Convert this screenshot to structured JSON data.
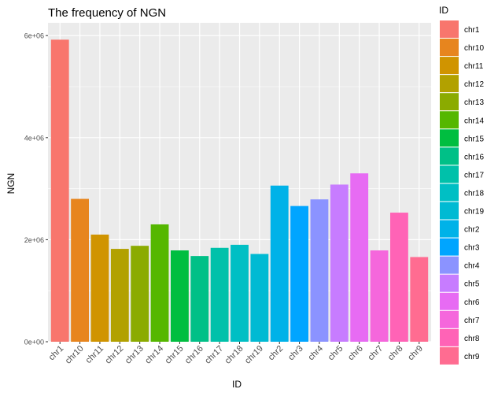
{
  "chart_data": {
    "type": "bar",
    "title": "The frequency of NGN",
    "xlabel": "ID",
    "ylabel": "NGN",
    "categories": [
      "chr1",
      "chr10",
      "chr11",
      "chr12",
      "chr13",
      "chr14",
      "chr15",
      "chr16",
      "chr17",
      "chr18",
      "chr19",
      "chr2",
      "chr3",
      "chr4",
      "chr5",
      "chr6",
      "chr7",
      "chr8",
      "chr9"
    ],
    "values": [
      5920000,
      2800000,
      2100000,
      1820000,
      1880000,
      2300000,
      1790000,
      1680000,
      1840000,
      1900000,
      1720000,
      3060000,
      2660000,
      2790000,
      3080000,
      3300000,
      1790000,
      2530000,
      1660000
    ],
    "colors": [
      "#F8766D",
      "#E7851E",
      "#D09400",
      "#B2A100",
      "#8BAB00",
      "#55B700",
      "#00BE40",
      "#00C087",
      "#00C1AA",
      "#00BFC4",
      "#00BAD3",
      "#00B2E8",
      "#00A5FF",
      "#8B93FF",
      "#C77CFF",
      "#E76BF3",
      "#F567DC",
      "#FF63B6",
      "#FF6C91"
    ],
    "yticks": [
      0,
      2000000,
      4000000,
      6000000
    ],
    "ytick_labels": [
      "0e+00",
      "2e+06",
      "4e+06",
      "6e+06"
    ],
    "ylim": [
      0,
      6250000
    ],
    "grid": true,
    "panel_background": "#EBEBEB",
    "legend": {
      "title": "ID",
      "placement": "right",
      "entries": [
        "chr1",
        "chr10",
        "chr11",
        "chr12",
        "chr13",
        "chr14",
        "chr15",
        "chr16",
        "chr17",
        "chr18",
        "chr19",
        "chr2",
        "chr3",
        "chr4",
        "chr5",
        "chr6",
        "chr7",
        "chr8",
        "chr9"
      ]
    }
  }
}
